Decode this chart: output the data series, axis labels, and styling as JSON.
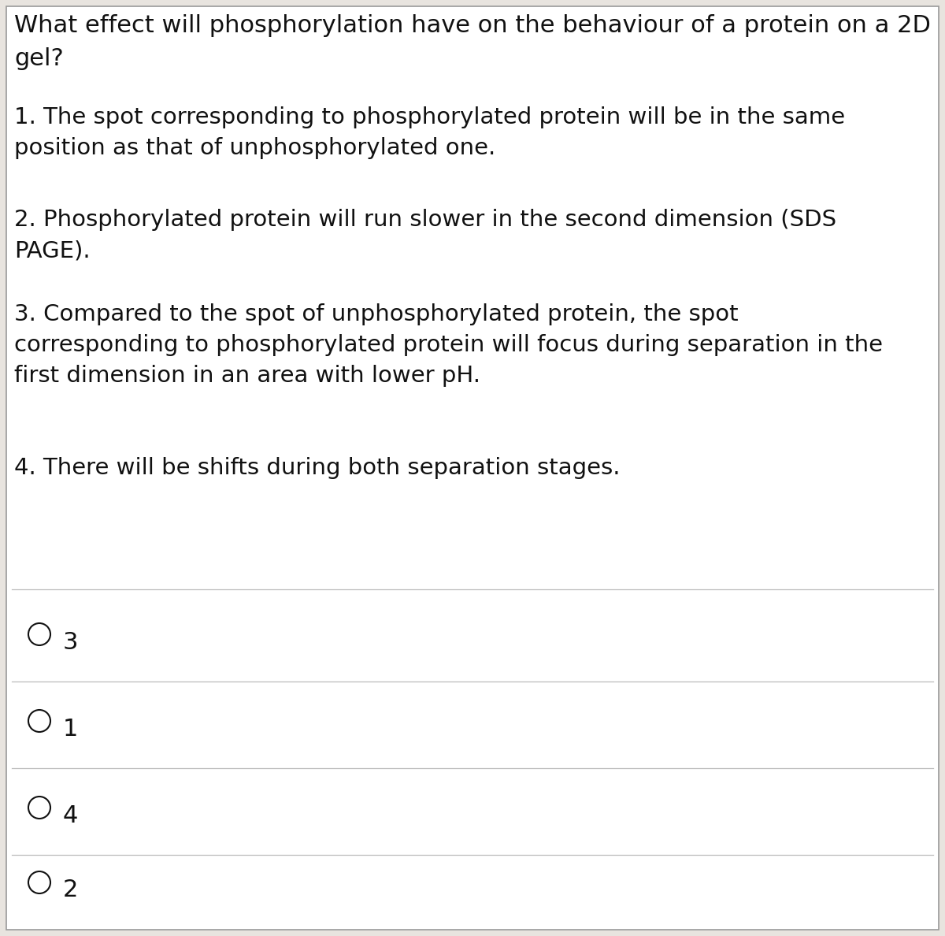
{
  "background_color": "#e8e4df",
  "border_color": "#999999",
  "title_line1": "What effect will phosphorylation have on the behaviour of a protein on a 2D",
  "title_line2": "gel?",
  "options": [
    "1. The spot corresponding to phosphorylated protein will be in the same\nposition as that of unphosphorylated one.",
    "2. Phosphorylated protein will run slower in the second dimension (SDS\nPAGE).",
    "3. Compared to the spot of unphosphorylated protein, the spot\ncorresponding to phosphorylated protein will focus during separation in the\nfirst dimension in an area with lower pH.",
    "4. There will be shifts during both separation stages."
  ],
  "answers": [
    "3",
    "1",
    "4",
    "2"
  ],
  "title_fontsize": 22,
  "option_fontsize": 21,
  "answer_fontsize": 22,
  "text_color": "#111111",
  "line_color": "#bbbbbb",
  "circle_color": "#111111",
  "white_bg": "#ffffff"
}
